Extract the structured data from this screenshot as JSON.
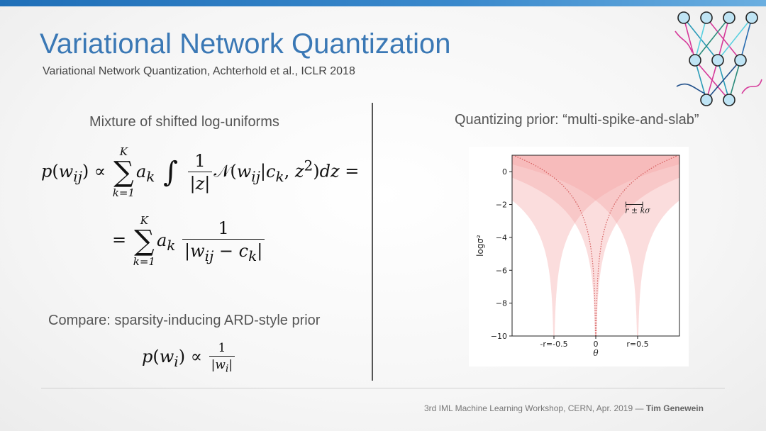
{
  "header": {
    "title": "Variational Network Quantization",
    "subtitle": "Variational Network Quantization, Achterhold et al., ICLR 2018"
  },
  "left": {
    "heading": "Mixture of shifted log-uniforms",
    "compare_label": "Compare: sparsity-inducing ARD-style prior"
  },
  "right": {
    "heading": "Quantizing prior: “multi-spike-and-slab”"
  },
  "chart_data": {
    "type": "area",
    "title": "",
    "xlabel": "θ",
    "ylabel": "logσ²",
    "ylim": [
      -10,
      1
    ],
    "xlim": [
      -1.0,
      1.0
    ],
    "x_ticks": [
      {
        "value": -0.5,
        "label": "-r=-0.5"
      },
      {
        "value": 0,
        "label": "0"
      },
      {
        "value": 0.5,
        "label": "r=0.5"
      }
    ],
    "y_ticks": [
      0,
      -2,
      -4,
      -6,
      -8,
      -10
    ],
    "centers": [
      -0.5,
      0,
      0.5
    ],
    "series_color": "#f4a6a6",
    "annotation": "r ± kσ",
    "grid": false
  },
  "footer": {
    "workshop": "3rd IML Machine Learning Workshop, CERN, Apr. 2019 — ",
    "author": "Tim Genewein"
  }
}
